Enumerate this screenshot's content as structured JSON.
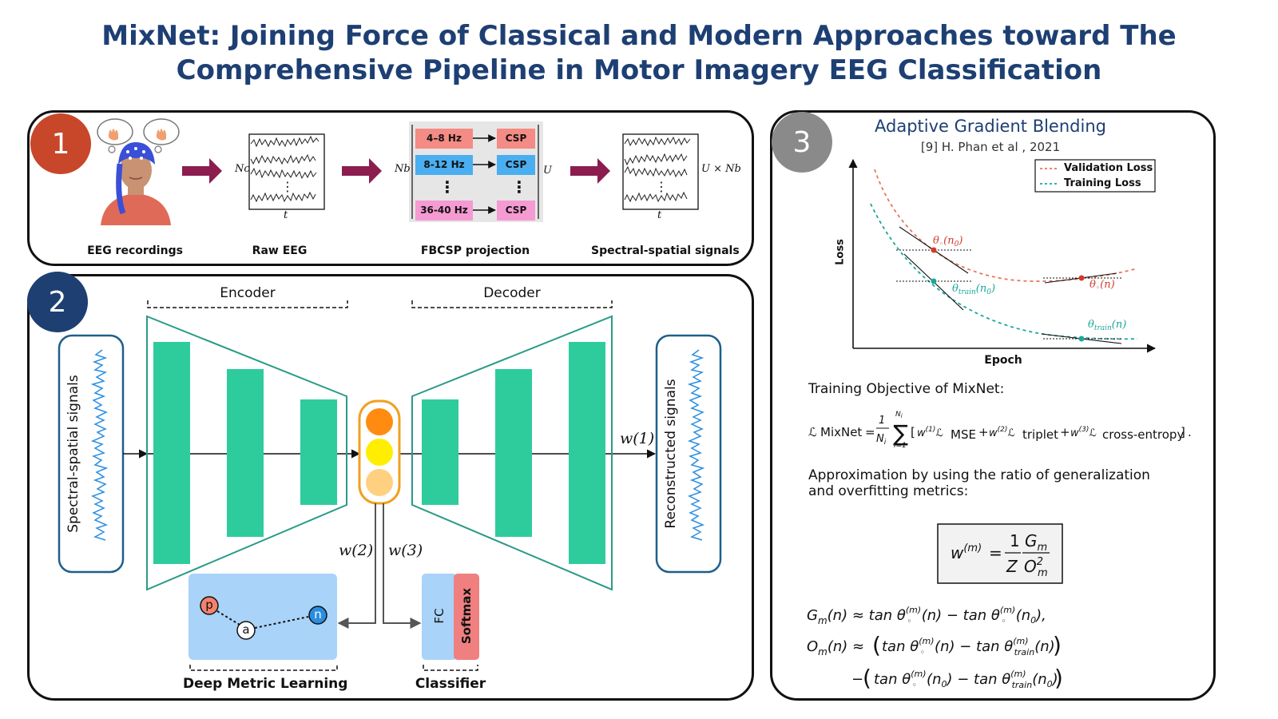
{
  "title": {
    "line1": "MixNet: Joining Force of Classical and Modern Approaches toward The",
    "line2": "Comprehensive Pipeline in Motor Imagery EEG Classification"
  },
  "panel1": {
    "badge": "1",
    "captions": {
      "recordings": "EEG recordings",
      "raw": "Raw EEG",
      "fbcsp": "FBCSP projection",
      "spectral": "Spectral-spatial signals"
    },
    "bands": [
      "4–8 Hz",
      "8-12 Hz",
      "36-40 Hz"
    ],
    "csp_label": "CSP",
    "symbols": {
      "nc": "Nc",
      "t": "t",
      "nb": "Nb",
      "u": "U",
      "u_x_nb": "U × Nb",
      "dots": "⋮"
    }
  },
  "panel2": {
    "badge": "2",
    "encoder": "Encoder",
    "decoder": "Decoder",
    "input_label": "Spectral-spatial signals",
    "output_label": "Reconstructed signals",
    "weights": {
      "w1": "w(1)",
      "w2": "w(2)",
      "w3": "w(3)"
    },
    "metric_nodes": {
      "p": "p",
      "a": "a",
      "n": "n"
    },
    "metric_caption": "Deep Metric Learning",
    "classifier": {
      "fc": "FC",
      "softmax": "Softmax",
      "caption": "Classifier"
    }
  },
  "panel3": {
    "badge": "3",
    "title": "Adaptive Gradient Blending",
    "citation": "[9]  H. Phan et al , 2021",
    "objective_heading": "Training Objective of MixNet:",
    "approx_heading_line1": "Approximation by using the ratio of generalization",
    "approx_heading_line2": "and overfitting metrics:"
  },
  "chart_data": {
    "type": "line",
    "xlabel": "Epoch",
    "ylabel": "Loss",
    "legend_placement": "top-right",
    "series": [
      {
        "name": "Validation Loss",
        "color": "#e8765a",
        "style": "dashed"
      },
      {
        "name": "Training Loss",
        "color": "#1aa79a",
        "style": "dashed"
      }
    ],
    "annotations": [
      "θ◦(n0)",
      "θtrain(n0)",
      "θ◦(n)",
      "θtrain(n)"
    ]
  },
  "colors": {
    "title": "#1d3f73",
    "badge1": "#c8462a",
    "badge2": "#1e3f72",
    "badge3": "#8a8a8a",
    "green": "#2ecc9c",
    "arrow": "#8c1d4f",
    "band_salmon": "#f48b84",
    "band_blue": "#4aaef0",
    "band_pink": "#f59ad2",
    "metric_box": "#a9d3f8",
    "softmax": "#f08080",
    "validation": "#e8765a",
    "training": "#1aa79a"
  }
}
